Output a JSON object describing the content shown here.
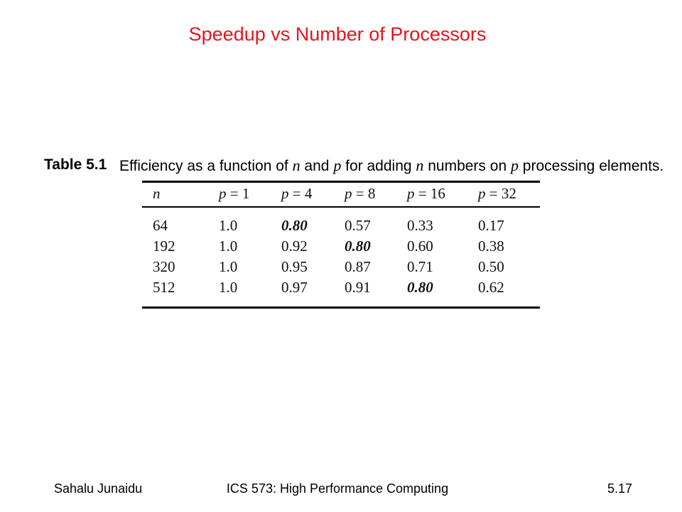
{
  "slide": {
    "title": "Speedup vs Number of Processors"
  },
  "table": {
    "label": "Table 5.1",
    "caption_parts": [
      "Efficiency as a function of ",
      "n",
      " and ",
      "p",
      " for adding ",
      "n",
      " numbers on ",
      "p",
      " processing elements."
    ],
    "headers": [
      "n",
      "p = 1",
      "p = 4",
      "p = 8",
      "p = 16",
      "p = 32"
    ],
    "rows": [
      [
        "64",
        "1.0",
        "0.80",
        "0.57",
        "0.33",
        "0.17"
      ],
      [
        "192",
        "1.0",
        "0.92",
        "0.80",
        "0.60",
        "0.38"
      ],
      [
        "320",
        "1.0",
        "0.95",
        "0.87",
        "0.71",
        "0.50"
      ],
      [
        "512",
        "1.0",
        "0.97",
        "0.91",
        "0.80",
        "0.62"
      ]
    ],
    "emphasized_cells": [
      [
        0,
        2
      ],
      [
        1,
        3
      ],
      [
        3,
        4
      ]
    ]
  },
  "footer": {
    "author": "Sahalu Junaidu",
    "course": "ICS 573: High Performance Computing",
    "page": "5.17"
  }
}
